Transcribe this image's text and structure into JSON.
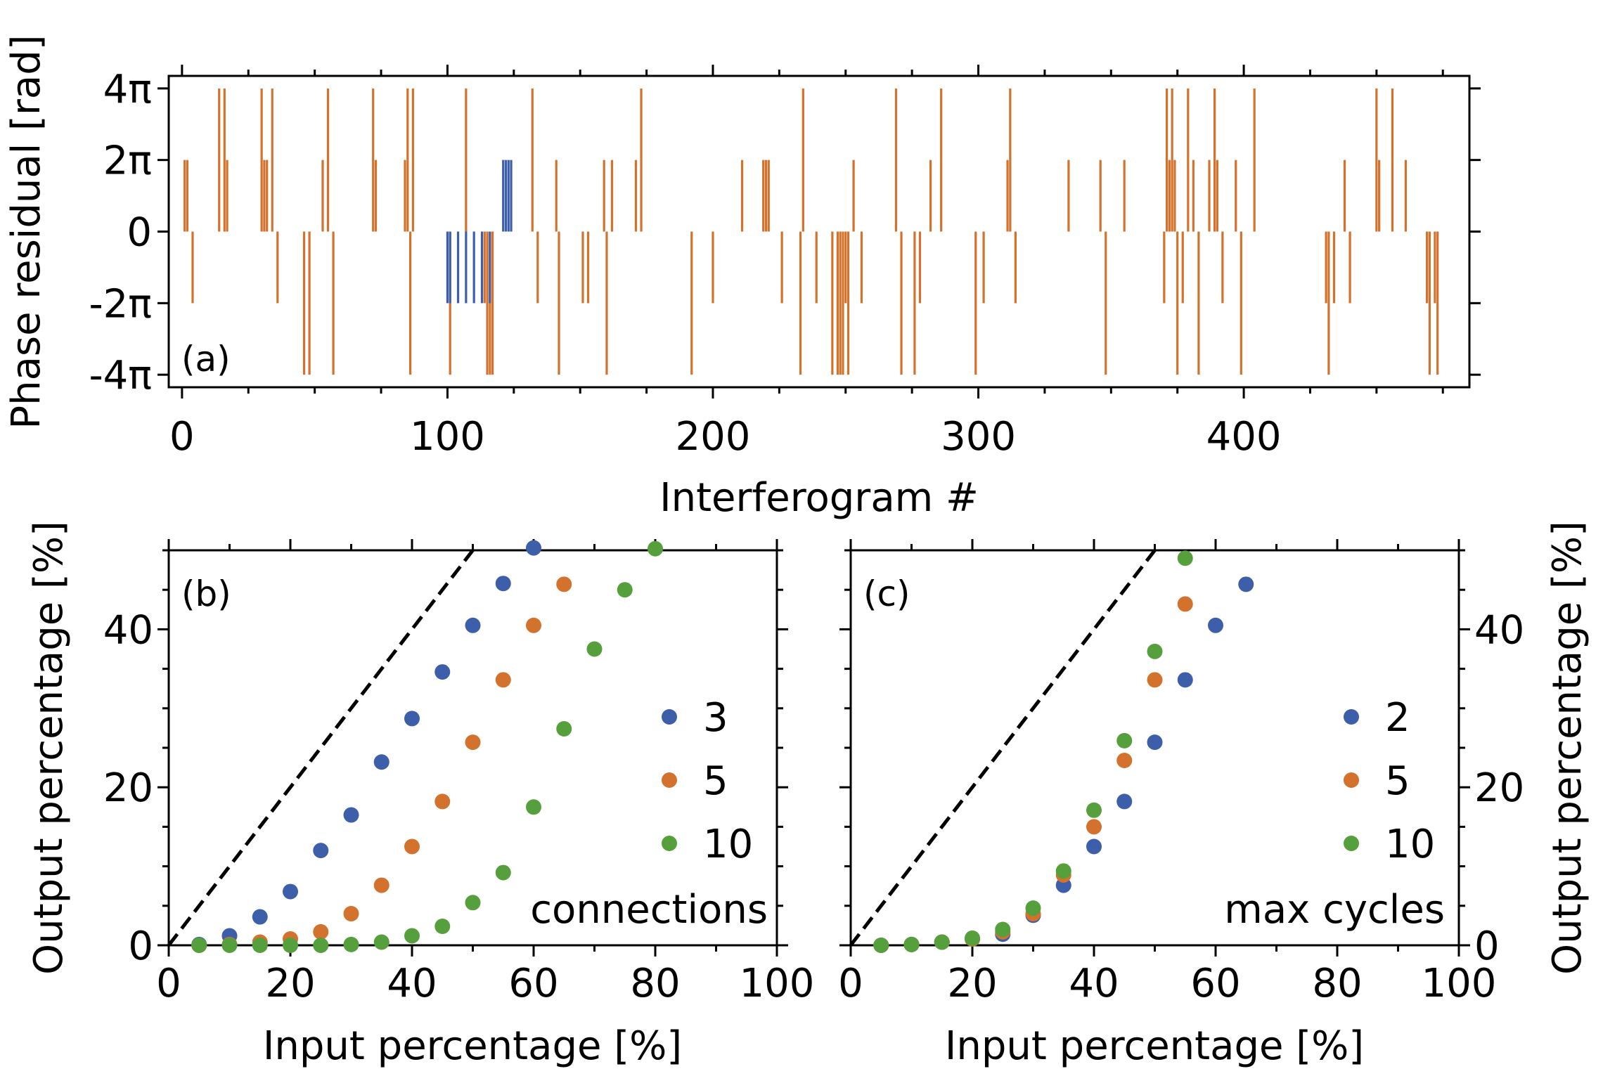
{
  "colors": {
    "blue": "#3d5ea9",
    "orange": "#d2722d",
    "green": "#559f3d",
    "axis": "#000000"
  },
  "chart_data": [
    {
      "panel": "(a)",
      "type": "bar",
      "xlabel": "Interferogram #",
      "ylabel": "Phase residual [rad]",
      "xlim": [
        -5,
        485
      ],
      "ylim": [
        -4.35,
        4.35
      ],
      "xticks": [
        0,
        100,
        200,
        300,
        400
      ],
      "xtick_labels": [
        "0",
        "100",
        "200",
        "300",
        "400"
      ],
      "yticks": [
        -4,
        -2,
        0,
        2,
        4
      ],
      "ytick_labels": [
        "-4π",
        "-2π",
        "0",
        "2π",
        "4π"
      ],
      "y_unit": "multiples of π",
      "series": [
        {
          "color": "orange",
          "points": [
            [
              1,
              2
            ],
            [
              2,
              2
            ],
            [
              4,
              -2
            ],
            [
              14,
              4
            ],
            [
              16,
              4
            ],
            [
              17,
              2
            ],
            [
              30,
              4
            ],
            [
              31,
              2
            ],
            [
              32,
              2
            ],
            [
              34,
              4
            ],
            [
              36,
              -2
            ],
            [
              46,
              -4
            ],
            [
              48,
              -4
            ],
            [
              53,
              2
            ],
            [
              55,
              4
            ],
            [
              57,
              -4
            ],
            [
              72,
              4
            ],
            [
              73,
              2
            ],
            [
              84,
              2
            ],
            [
              85,
              4
            ],
            [
              86,
              -4
            ],
            [
              87,
              4
            ],
            [
              101,
              -4
            ],
            [
              107,
              4
            ],
            [
              114,
              -2
            ],
            [
              115,
              -4
            ],
            [
              116,
              -4
            ],
            [
              117,
              -4
            ],
            [
              132,
              4
            ],
            [
              134,
              -2
            ],
            [
              141,
              2
            ],
            [
              142,
              -4
            ],
            [
              151,
              -2
            ],
            [
              153,
              -2
            ],
            [
              159,
              2
            ],
            [
              160,
              -4
            ],
            [
              162,
              2
            ],
            [
              171,
              2
            ],
            [
              173,
              4
            ],
            [
              192,
              -4
            ],
            [
              200,
              -2
            ],
            [
              211,
              2
            ],
            [
              219,
              2
            ],
            [
              220,
              2
            ],
            [
              221,
              2
            ],
            [
              226,
              -2
            ],
            [
              233,
              -4
            ],
            [
              234,
              4
            ],
            [
              239,
              -2
            ],
            [
              245,
              -4
            ],
            [
              247,
              -4
            ],
            [
              248,
              -4
            ],
            [
              249,
              -4
            ],
            [
              250,
              -2
            ],
            [
              251,
              -4
            ],
            [
              253,
              2
            ],
            [
              256,
              -2
            ],
            [
              269,
              4
            ],
            [
              271,
              -4
            ],
            [
              276,
              -4
            ],
            [
              278,
              -2
            ],
            [
              282,
              2
            ],
            [
              286,
              4
            ],
            [
              299,
              -4
            ],
            [
              302,
              -2
            ],
            [
              311,
              2
            ],
            [
              312,
              4
            ],
            [
              314,
              -2
            ],
            [
              334,
              2
            ],
            [
              346,
              2
            ],
            [
              348,
              -4
            ],
            [
              355,
              2
            ],
            [
              370,
              -2
            ],
            [
              371,
              4
            ],
            [
              372,
              2
            ],
            [
              373,
              4
            ],
            [
              374,
              2
            ],
            [
              375,
              -4
            ],
            [
              377,
              -2
            ],
            [
              379,
              4
            ],
            [
              381,
              2
            ],
            [
              383,
              -4
            ],
            [
              387,
              2
            ],
            [
              389,
              4
            ],
            [
              390,
              2
            ],
            [
              392,
              -2
            ],
            [
              397,
              2
            ],
            [
              399,
              -4
            ],
            [
              404,
              4
            ],
            [
              431,
              -2
            ],
            [
              432,
              -4
            ],
            [
              434,
              -2
            ],
            [
              438,
              2
            ],
            [
              440,
              -2
            ],
            [
              450,
              4
            ],
            [
              451,
              2
            ],
            [
              456,
              4
            ],
            [
              461,
              2
            ],
            [
              469,
              -2
            ],
            [
              470,
              -4
            ],
            [
              472,
              -2
            ],
            [
              473,
              -4
            ]
          ]
        },
        {
          "color": "blue",
          "points": [
            [
              100,
              -2
            ],
            [
              101,
              -2
            ],
            [
              104,
              -2
            ],
            [
              107,
              -2
            ],
            [
              110,
              -2
            ],
            [
              113,
              -2
            ],
            [
              116,
              -2
            ],
            [
              121,
              2
            ],
            [
              122,
              2
            ],
            [
              123,
              2
            ],
            [
              124,
              2
            ]
          ]
        }
      ]
    },
    {
      "panel": "(b)",
      "type": "scatter",
      "xlabel": "Input percentage [%]",
      "ylabel": "Output percentage [%]",
      "xlim": [
        0,
        100
      ],
      "ylim": [
        0,
        50
      ],
      "xticks": [
        0,
        20,
        40,
        60,
        80,
        100
      ],
      "yticks": [
        0,
        20,
        40
      ],
      "legend_title": "connections",
      "legend_position": "lower-right",
      "reference_line": "y = x (dashed)",
      "series": [
        {
          "name": "3",
          "color": "blue",
          "x": [
            5,
            10,
            15,
            20,
            25,
            30,
            35,
            40,
            45,
            50,
            55,
            60
          ],
          "y": [
            0.1,
            1.2,
            3.6,
            6.8,
            12.0,
            16.5,
            23.2,
            28.7,
            34.6,
            40.5,
            45.8,
            50.3
          ]
        },
        {
          "name": "5",
          "color": "orange",
          "x": [
            5,
            10,
            15,
            20,
            25,
            30,
            35,
            40,
            45,
            50,
            55,
            60,
            65
          ],
          "y": [
            0,
            0.1,
            0.4,
            0.8,
            1.7,
            4.0,
            7.6,
            12.5,
            18.2,
            25.7,
            33.6,
            40.5,
            45.7
          ]
        },
        {
          "name": "10",
          "color": "green",
          "x": [
            5,
            10,
            15,
            20,
            25,
            30,
            35,
            40,
            45,
            50,
            55,
            60,
            65,
            70,
            75,
            80
          ],
          "y": [
            0,
            0,
            0,
            0,
            0,
            0.1,
            0.4,
            1.2,
            2.4,
            5.4,
            9.2,
            17.5,
            27.4,
            37.5,
            45.0,
            50.2
          ]
        }
      ]
    },
    {
      "panel": "(c)",
      "type": "scatter",
      "xlabel": "Input percentage [%]",
      "ylabel": "Output percentage [%]",
      "xlim": [
        0,
        100
      ],
      "ylim": [
        0,
        50
      ],
      "xticks": [
        0,
        20,
        40,
        60,
        80,
        100
      ],
      "yticks": [
        0,
        20,
        40
      ],
      "legend_title": "max cycles",
      "legend_position": "lower-right",
      "reference_line": "y = x (dashed)",
      "series": [
        {
          "name": "2",
          "color": "blue",
          "x": [
            5,
            10,
            15,
            20,
            25,
            30,
            35,
            40,
            45,
            50,
            55,
            60,
            65
          ],
          "y": [
            0,
            0.1,
            0.4,
            0.8,
            1.4,
            3.8,
            7.6,
            12.5,
            18.2,
            25.7,
            33.6,
            40.5,
            45.7
          ]
        },
        {
          "name": "5",
          "color": "orange",
          "x": [
            5,
            10,
            15,
            20,
            25,
            30,
            35,
            40,
            45,
            50,
            55
          ],
          "y": [
            0,
            0.1,
            0.4,
            0.8,
            1.7,
            4.0,
            8.9,
            15.0,
            23.4,
            33.6,
            43.2
          ]
        },
        {
          "name": "10",
          "color": "green",
          "x": [
            5,
            10,
            15,
            20,
            25,
            30,
            35,
            40,
            45,
            50,
            55
          ],
          "y": [
            0,
            0.1,
            0.4,
            0.9,
            2.0,
            4.7,
            9.4,
            17.1,
            25.9,
            37.2,
            49.0
          ]
        }
      ]
    }
  ]
}
